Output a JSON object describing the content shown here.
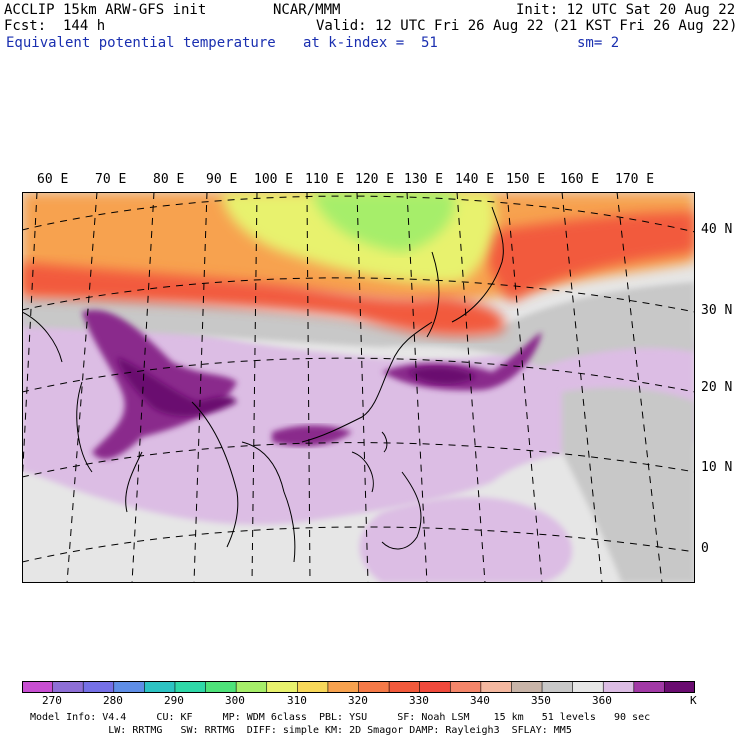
{
  "header": {
    "line1_left": "ACCLIP 15km ARW-GFS init",
    "line1_center": "NCAR/MMM",
    "line1_right": "Init: 12 UTC Sat 20 Aug 22",
    "line2_left": "Fcst:  144 h",
    "line2_right": "Valid: 12 UTC Fri 26 Aug 22 (21 KST Fri 26 Aug 22)",
    "line3_left": "Equivalent potential temperature",
    "line3_center": "at k-index =  51",
    "line3_right": "sm= 2"
  },
  "map": {
    "lon_labels": [
      "60 E",
      "70 E",
      "80 E",
      "90 E",
      "100 E",
      "110 E",
      "120 E",
      "130 E",
      "140 E",
      "150 E",
      "160 E",
      "170 E"
    ],
    "lat_labels": [
      "40 N",
      "30 N",
      "20 N",
      "10 N",
      "0"
    ],
    "field_colors": {
      "orange": "#f7a24f",
      "red": "#f25a3c",
      "yellow": "#e8f26e",
      "green": "#a6ee6a",
      "gray": "#c8c8c8",
      "lightgray": "#e6e6e6",
      "lavender": "#dcbde4",
      "magenta": "#8a2a8c",
      "deep": "#6a0c70"
    }
  },
  "colorbar": {
    "colors": [
      "#c84fd2",
      "#8e6fd6",
      "#7570e6",
      "#5f8ee6",
      "#2dc3c3",
      "#2fd8a8",
      "#4ee27a",
      "#a6ee6a",
      "#e8f26e",
      "#f8d85a",
      "#f7a24f",
      "#f57a48",
      "#f25a3c",
      "#f04a3c",
      "#f4866a",
      "#f4b8a0",
      "#c8b4a8",
      "#c8c8c8",
      "#e6e6e6",
      "#dcbde4",
      "#a23aa6",
      "#6a0c70"
    ],
    "labels": [
      "270",
      "280",
      "290",
      "300",
      "310",
      "320",
      "330",
      "340",
      "350",
      "360"
    ],
    "unit": "K"
  },
  "footer": {
    "line1": "Model Info: V4.4     CU: KF     MP: WDM 6class  PBL: YSU     SF: Noah LSM    15 km   51 levels   90 sec",
    "line2": "             LW: RRTMG   SW: RRTMG  DIFF: simple KM: 2D Smagor DAMP: Rayleigh3  SFLAY: MM5"
  }
}
